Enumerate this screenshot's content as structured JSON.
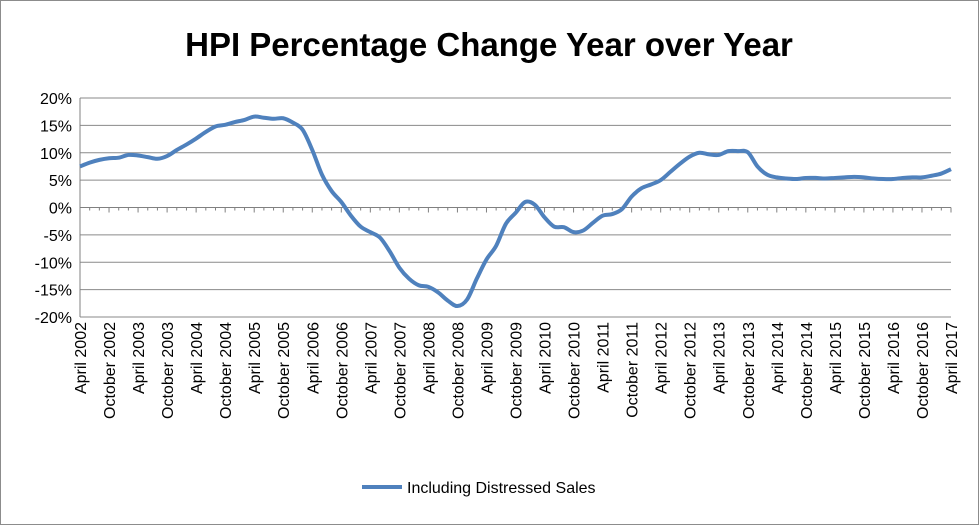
{
  "chart_data": {
    "type": "line",
    "title": "HPI Percentage Change Year over Year",
    "xlabel": "",
    "ylabel": "",
    "ylim": [
      -20,
      20
    ],
    "y_ticks": [
      "20%",
      "15%",
      "10%",
      "5%",
      "0%",
      "-5%",
      "-10%",
      "-15%",
      "-20%"
    ],
    "x_ticks": [
      "April 2002",
      "October 2002",
      "April 2003",
      "October 2003",
      "April 2004",
      "October 2004",
      "April 2005",
      "October 2005",
      "April 2006",
      "October 2006",
      "April 2007",
      "October 2007",
      "April 2008",
      "October 2008",
      "April 2009",
      "October 2009",
      "April 2010",
      "October 2010",
      "April 2011",
      "October 2011",
      "April 2012",
      "October 2012",
      "April 2013",
      "October 2013",
      "April 2014",
      "October 2014",
      "April 2015",
      "October 2015",
      "April 2016",
      "October 2016",
      "April 2017"
    ],
    "grid": true,
    "legend_position": "bottom",
    "line_color": "#4f81bd",
    "series": [
      {
        "name": "Including Distressed Sales",
        "x": [
          "April 2002",
          "June 2002",
          "August 2002",
          "October 2002",
          "December 2002",
          "February 2003",
          "April 2003",
          "June 2003",
          "August 2003",
          "October 2003",
          "December 2003",
          "February 2004",
          "April 2004",
          "June 2004",
          "August 2004",
          "October 2004",
          "December 2004",
          "February 2005",
          "April 2005",
          "June 2005",
          "August 2005",
          "October 2005",
          "December 2005",
          "February 2006",
          "April 2006",
          "June 2006",
          "August 2006",
          "October 2006",
          "December 2006",
          "February 2007",
          "April 2007",
          "June 2007",
          "August 2007",
          "October 2007",
          "December 2007",
          "February 2008",
          "April 2008",
          "June 2008",
          "August 2008",
          "October 2008",
          "December 2008",
          "February 2009",
          "April 2009",
          "June 2009",
          "August 2009",
          "October 2009",
          "December 2009",
          "February 2010",
          "April 2010",
          "June 2010",
          "August 2010",
          "October 2010",
          "December 2010",
          "February 2011",
          "April 2011",
          "June 2011",
          "August 2011",
          "October 2011",
          "December 2011",
          "February 2012",
          "April 2012",
          "June 2012",
          "August 2012",
          "October 2012",
          "December 2012",
          "February 2013",
          "April 2013",
          "June 2013",
          "August 2013",
          "October 2013",
          "December 2013",
          "February 2014",
          "April 2014",
          "June 2014",
          "August 2014",
          "October 2014",
          "December 2014",
          "February 2015",
          "April 2015",
          "June 2015",
          "August 2015",
          "October 2015",
          "December 2015",
          "February 2016",
          "April 2016",
          "June 2016",
          "August 2016",
          "October 2016",
          "December 2016",
          "February 2017",
          "April 2017"
        ],
        "values": [
          7.5,
          8.2,
          8.7,
          9.0,
          9.1,
          9.6,
          9.5,
          9.2,
          8.9,
          9.4,
          10.5,
          11.5,
          12.6,
          13.8,
          14.8,
          15.1,
          15.6,
          16.0,
          16.6,
          16.4,
          16.2,
          16.3,
          15.5,
          14.2,
          10.5,
          6.0,
          3.0,
          1.0,
          -1.5,
          -3.5,
          -4.5,
          -5.5,
          -8.0,
          -11.0,
          -13.0,
          -14.2,
          -14.5,
          -15.5,
          -17.0,
          -18.0,
          -16.8,
          -13.0,
          -9.5,
          -7.0,
          -3.0,
          -1.0,
          1.0,
          0.5,
          -1.8,
          -3.5,
          -3.6,
          -4.5,
          -4.2,
          -2.8,
          -1.5,
          -1.2,
          -0.3,
          2.0,
          3.5,
          4.2,
          5.0,
          6.5,
          8.0,
          9.3,
          10.0,
          9.7,
          9.6,
          10.3,
          10.3,
          10.1,
          7.5,
          6.0,
          5.5,
          5.3,
          5.2,
          5.4,
          5.4,
          5.3,
          5.4,
          5.5,
          5.6,
          5.5,
          5.3,
          5.2,
          5.2,
          5.4,
          5.5,
          5.5,
          5.8,
          6.2,
          7.0
        ]
      }
    ]
  }
}
